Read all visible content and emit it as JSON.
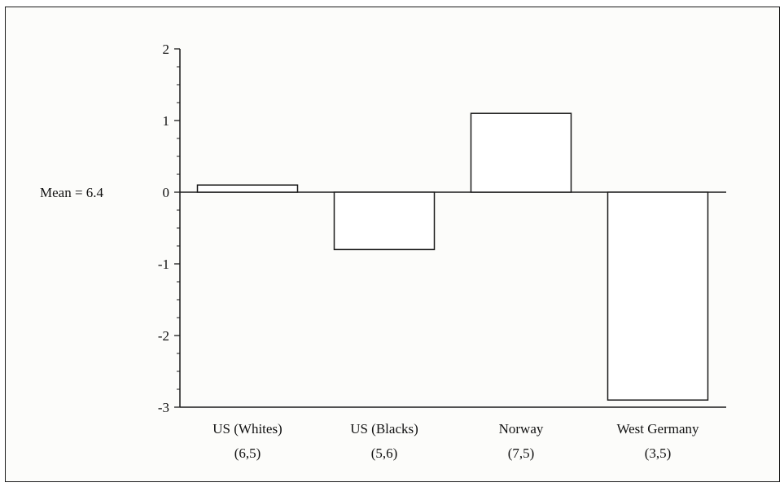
{
  "chart_data": {
    "type": "bar",
    "baseline_label": "Mean = 6.4",
    "categories": [
      "US (Whites)",
      "US (Blacks)",
      "Norway",
      "West Germany"
    ],
    "category_sublabels": [
      "(6,5)",
      "(5,6)",
      "(7,5)",
      "(3,5)"
    ],
    "values": [
      0.1,
      -0.8,
      1.1,
      -2.9
    ],
    "ylim": [
      -3,
      2
    ],
    "yticks": [
      2,
      1,
      0,
      -1,
      -2,
      -3
    ],
    "ytick_labels": [
      "2",
      "1",
      "0",
      "-1",
      "-2",
      "-3"
    ],
    "grid": false,
    "bar_fill": "#ffffff",
    "bar_stroke": "#1a1a1a"
  }
}
